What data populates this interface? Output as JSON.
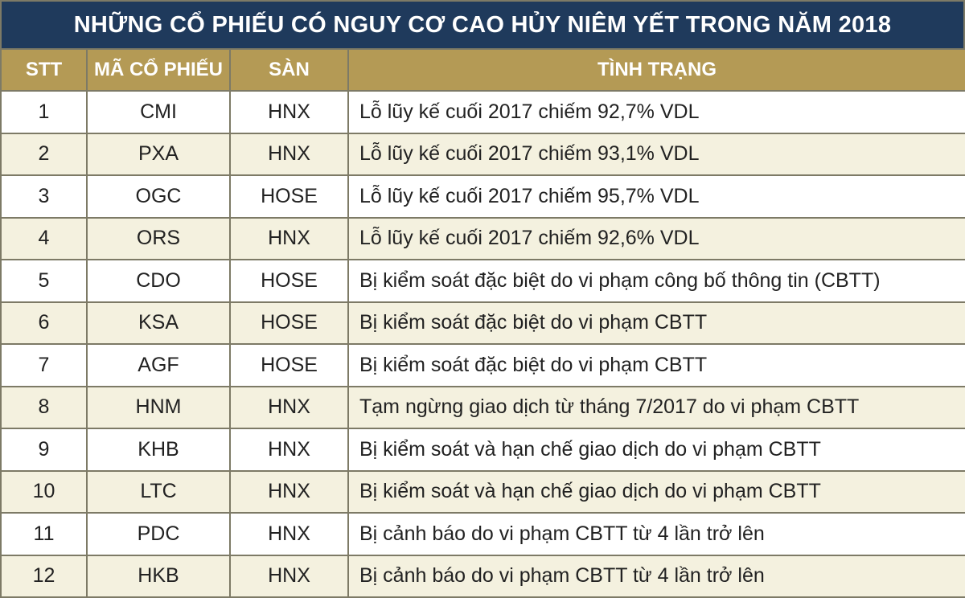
{
  "title": "NHỮNG CỔ PHIẾU CÓ NGUY CƠ CAO HỦY NIÊM YẾT TRONG NĂM 2018",
  "headers": {
    "stt": "STT",
    "code": "MÃ CỔ PHIẾU",
    "exchange": "SÀN",
    "status": "TÌNH TRẠNG"
  },
  "rows": [
    {
      "stt": "1",
      "code": "CMI",
      "exchange": "HNX",
      "status": "Lỗ lũy kế cuối 2017 chiếm 92,7% VDL"
    },
    {
      "stt": "2",
      "code": "PXA",
      "exchange": "HNX",
      "status": "Lỗ lũy kế cuối 2017 chiếm 93,1% VDL"
    },
    {
      "stt": "3",
      "code": "OGC",
      "exchange": "HOSE",
      "status": "Lỗ lũy kế cuối 2017 chiếm 95,7% VDL"
    },
    {
      "stt": "4",
      "code": "ORS",
      "exchange": "HNX",
      "status": "Lỗ lũy kế cuối 2017 chiếm 92,6% VDL"
    },
    {
      "stt": "5",
      "code": "CDO",
      "exchange": "HOSE",
      "status": "Bị kiểm soát đặc biệt do vi phạm công bố thông tin (CBTT)"
    },
    {
      "stt": "6",
      "code": "KSA",
      "exchange": "HOSE",
      "status": "Bị kiểm soát đặc biệt do vi phạm CBTT"
    },
    {
      "stt": "7",
      "code": "AGF",
      "exchange": "HOSE",
      "status": "Bị kiểm soát đặc biệt do vi phạm CBTT"
    },
    {
      "stt": "8",
      "code": "HNM",
      "exchange": "HNX",
      "status": "Tạm ngừng giao dịch từ tháng 7/2017 do vi phạm CBTT"
    },
    {
      "stt": "9",
      "code": "KHB",
      "exchange": "HNX",
      "status": "Bị kiểm soát và hạn chế giao dịch do vi phạm CBTT"
    },
    {
      "stt": "10",
      "code": "LTC",
      "exchange": "HNX",
      "status": "Bị kiểm soát và hạn chế giao dịch do vi phạm CBTT"
    },
    {
      "stt": "11",
      "code": "PDC",
      "exchange": "HNX",
      "status": "Bị cảnh báo do vi phạm CBTT từ 4 lần trở lên"
    },
    {
      "stt": "12",
      "code": "HKB",
      "exchange": "HNX",
      "status": "Bị cảnh báo do vi phạm CBTT từ 4 lần trở lên"
    }
  ],
  "colors": {
    "title_bg": "#1f3a5c",
    "header_bg": "#b49a55",
    "row_alt_bg": "#f4f1df",
    "border": "#7d7a66"
  }
}
